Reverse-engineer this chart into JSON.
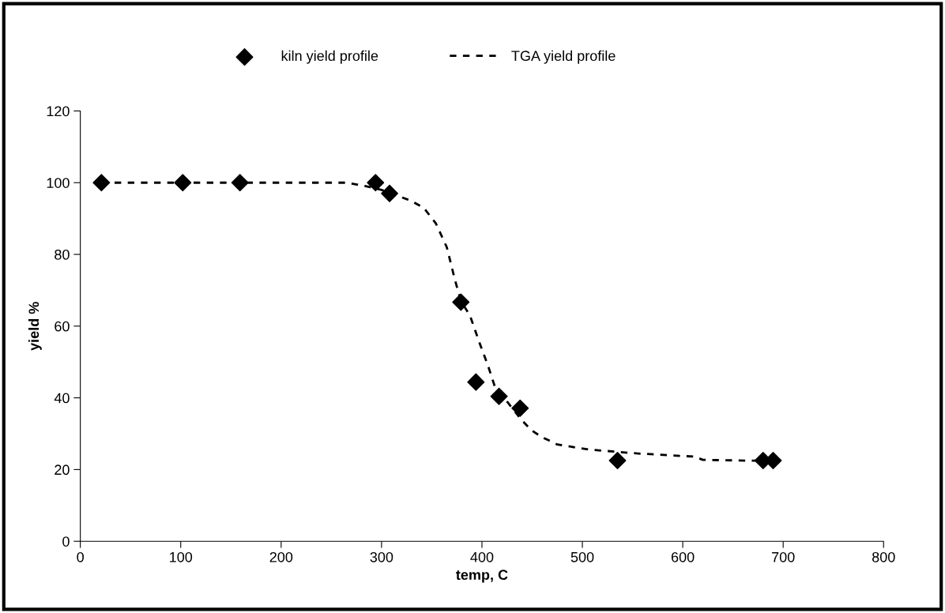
{
  "chart_data": {
    "type": "scatter",
    "xlabel": "temp, C",
    "ylabel": "yield %",
    "xlim": [
      0,
      800
    ],
    "xticks": [
      0,
      100,
      200,
      300,
      400,
      500,
      600,
      700,
      800
    ],
    "ylim": [
      0,
      120
    ],
    "yticks": [
      0,
      20,
      40,
      60,
      80,
      100,
      120
    ],
    "grid": false,
    "legend": "top",
    "series": [
      {
        "name": "kiln yield profile",
        "marker": "diamond",
        "color": "#000000",
        "x": [
          21,
          102,
          159,
          294,
          308,
          379,
          394,
          417,
          438,
          535,
          680,
          690
        ],
        "values": [
          100,
          100,
          100,
          100,
          97,
          66.7,
          44.4,
          40.4,
          37.1,
          22.5,
          22.5,
          22.5
        ]
      },
      {
        "name": "TGA yield profile",
        "type": "line",
        "line_style": "dotted",
        "marker": "none",
        "color": "#000000",
        "x": [
          21,
          265,
          285,
          300,
          329,
          342,
          354,
          365,
          373,
          379,
          388,
          398,
          406,
          413,
          426,
          439,
          449,
          460,
          475,
          506,
          554,
          612,
          620,
          664,
          677
        ],
        "values": [
          100,
          100,
          99,
          98,
          95,
          93,
          88.7,
          82,
          73,
          67,
          63,
          55,
          49,
          43,
          38.6,
          34,
          31,
          29,
          27,
          25.6,
          24.5,
          23.6,
          22.7,
          22.5,
          22.5
        ]
      }
    ]
  }
}
